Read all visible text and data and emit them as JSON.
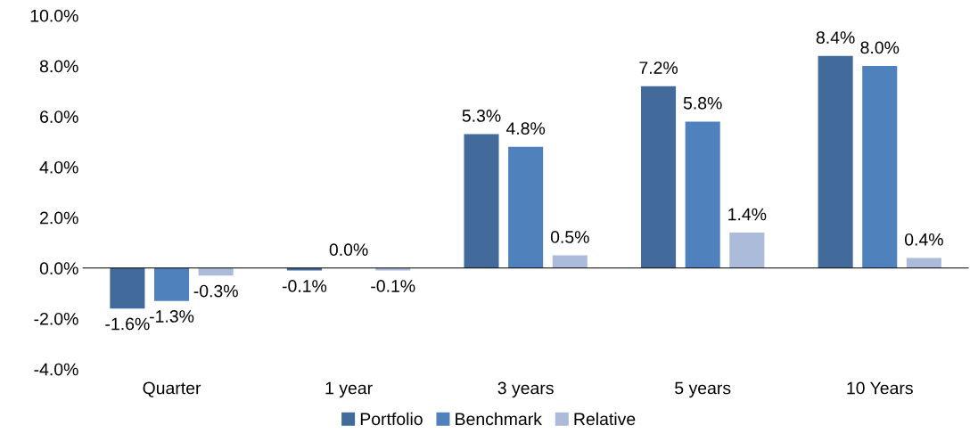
{
  "chart_data": {
    "type": "bar",
    "categories": [
      "Quarter",
      "1 year",
      "3 years",
      "5 years",
      "10 Years"
    ],
    "series": [
      {
        "name": "Portfolio",
        "color": "#426b9c",
        "values": [
          -1.6,
          -0.1,
          5.3,
          7.2,
          8.4
        ],
        "value_labels": [
          "-1.6%",
          "-0.1%",
          "5.3%",
          "7.2%",
          "8.4%"
        ]
      },
      {
        "name": "Benchmark",
        "color": "#4f81bd",
        "values": [
          -1.3,
          0.0,
          4.8,
          5.8,
          8.0
        ],
        "value_labels": [
          "-1.3%",
          "0.0%",
          "4.8%",
          "5.8%",
          "8.0%"
        ]
      },
      {
        "name": "Relative",
        "color": "#abbbd9",
        "values": [
          -0.3,
          -0.1,
          0.5,
          1.4,
          0.4
        ],
        "value_labels": [
          "-0.3%",
          "-0.1%",
          "0.5%",
          "1.4%",
          "0.4%"
        ]
      }
    ],
    "ylim": [
      -4,
      10
    ],
    "yticks": [
      {
        "value": -4,
        "label": "-4.0%"
      },
      {
        "value": -2,
        "label": "-2.0%"
      },
      {
        "value": 0,
        "label": "0.0%"
      },
      {
        "value": 2,
        "label": "2.0%"
      },
      {
        "value": 4,
        "label": "4.0%"
      },
      {
        "value": 6,
        "label": "6.0%"
      },
      {
        "value": 8,
        "label": "8.0%"
      },
      {
        "value": 10,
        "label": "10.0%"
      }
    ],
    "legend": "bottom"
  }
}
